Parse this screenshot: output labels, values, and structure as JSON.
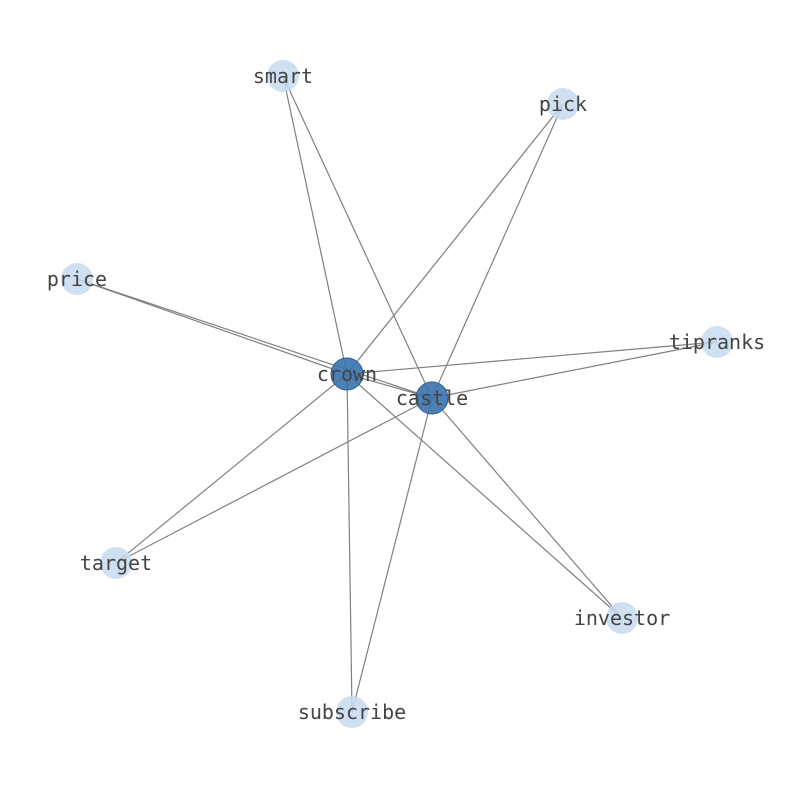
{
  "graph": {
    "colors": {
      "hub": "#3a72ad",
      "leaf": "#c6dbef",
      "edge": "#808080",
      "label": "#444444"
    },
    "nodes": [
      {
        "id": "crown",
        "label": "crown",
        "type": "hub"
      },
      {
        "id": "castle",
        "label": "castle",
        "type": "hub"
      },
      {
        "id": "smart",
        "label": "smart",
        "type": "leaf"
      },
      {
        "id": "pick",
        "label": "pick",
        "type": "leaf"
      },
      {
        "id": "price",
        "label": "price",
        "type": "leaf"
      },
      {
        "id": "tipranks",
        "label": "tipranks",
        "type": "leaf"
      },
      {
        "id": "target",
        "label": "target",
        "type": "leaf"
      },
      {
        "id": "investor",
        "label": "investor",
        "type": "leaf"
      },
      {
        "id": "subscribe",
        "label": "subscribe",
        "type": "leaf"
      }
    ],
    "edges": [
      [
        "crown",
        "castle"
      ],
      [
        "crown",
        "smart"
      ],
      [
        "castle",
        "smart"
      ],
      [
        "crown",
        "pick"
      ],
      [
        "castle",
        "pick"
      ],
      [
        "crown",
        "price"
      ],
      [
        "castle",
        "price"
      ],
      [
        "crown",
        "tipranks"
      ],
      [
        "castle",
        "tipranks"
      ],
      [
        "crown",
        "target"
      ],
      [
        "castle",
        "target"
      ],
      [
        "crown",
        "investor"
      ],
      [
        "castle",
        "investor"
      ],
      [
        "crown",
        "subscribe"
      ],
      [
        "castle",
        "subscribe"
      ]
    ]
  }
}
